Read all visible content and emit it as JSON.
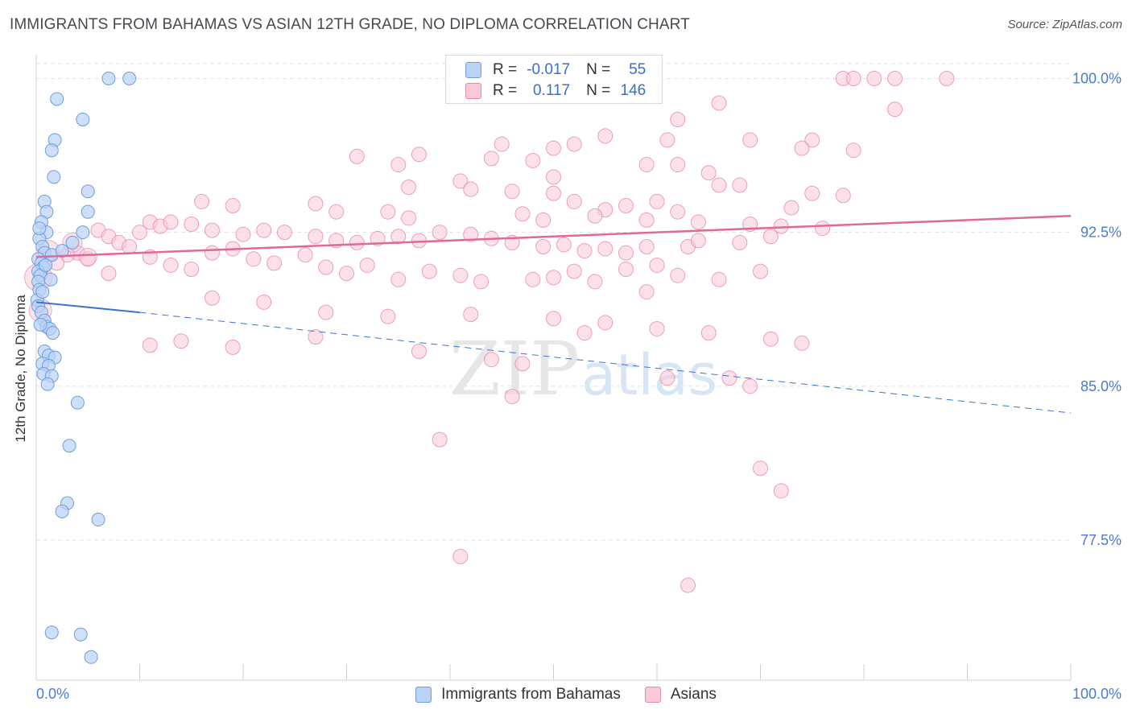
{
  "title": "IMMIGRANTS FROM BAHAMAS VS ASIAN 12TH GRADE, NO DIPLOMA CORRELATION CHART",
  "source": "Source: ZipAtlas.com",
  "watermark": {
    "zip": "ZIP",
    "atlas": "atlas"
  },
  "legend": {
    "row1": {
      "r_label": "R =",
      "r_value": "-0.017",
      "n_label": "N =",
      "n_value": "55"
    },
    "row2": {
      "r_label": "R =",
      "r_value": "0.117",
      "n_label": "N =",
      "n_value": "146"
    }
  },
  "colors": {
    "blue_fill": "#b9d3f5",
    "blue_stroke": "#6d9de0",
    "blue_line": "#3b73d1",
    "pink_fill": "#f9c9d8",
    "pink_stroke": "#e98aa8",
    "pink_line": "#e0699a",
    "grid": "#e3e3e3",
    "tick_text": "#4a7bd0"
  },
  "chart_data": {
    "type": "scatter",
    "title": "IMMIGRANTS FROM BAHAMAS VS ASIAN 12TH GRADE, NO DIPLOMA CORRELATION CHART",
    "xlabel": "",
    "ylabel": "12th Grade, No Diploma",
    "xlim": [
      0,
      100
    ],
    "ylim": [
      70.5,
      101.5
    ],
    "x_tick_labels": [
      "0.0%",
      "100.0%"
    ],
    "y_ticks": [
      77.5,
      85.0,
      92.5,
      100.0
    ],
    "y_tick_labels": [
      "77.5%",
      "85.0%",
      "92.5%",
      "100.0%"
    ],
    "grid": true,
    "legend_position": "top-center",
    "series": [
      {
        "name": "Immigrants from Bahamas",
        "r": -0.017,
        "n": 55,
        "trend": {
          "x": [
            0,
            10,
            100
          ],
          "y": [
            89.1,
            88.6,
            83.7
          ]
        },
        "points": [
          [
            7,
            100
          ],
          [
            9,
            100
          ],
          [
            2,
            99
          ],
          [
            4.5,
            98
          ],
          [
            1.8,
            97
          ],
          [
            1.5,
            96.5
          ],
          [
            1.7,
            95.2
          ],
          [
            5,
            94.5
          ],
          [
            0.8,
            94
          ],
          [
            1,
            93.5
          ],
          [
            5,
            93.5
          ],
          [
            0.5,
            93
          ],
          [
            1,
            92.5
          ],
          [
            4.5,
            92.5
          ],
          [
            0.3,
            92.2
          ],
          [
            3.5,
            92
          ],
          [
            0.6,
            91.8
          ],
          [
            0.8,
            91.5
          ],
          [
            1.5,
            91.4
          ],
          [
            0.2,
            91.2
          ],
          [
            0.5,
            91
          ],
          [
            0.7,
            90.8
          ],
          [
            0.2,
            90.6
          ],
          [
            0.4,
            90.4
          ],
          [
            0.2,
            90.1
          ],
          [
            0.3,
            89.7
          ],
          [
            0.1,
            89.2
          ],
          [
            0.2,
            88.9
          ],
          [
            0.5,
            88.6
          ],
          [
            0.8,
            88.2
          ],
          [
            1,
            87.9
          ],
          [
            1.3,
            87.8
          ],
          [
            1.6,
            87.6
          ],
          [
            0.8,
            86.7
          ],
          [
            1.2,
            86.5
          ],
          [
            1.8,
            86.4
          ],
          [
            0.6,
            86.1
          ],
          [
            1.2,
            86
          ],
          [
            0.7,
            85.6
          ],
          [
            1.5,
            85.5
          ],
          [
            1.1,
            85.1
          ],
          [
            4,
            84.2
          ],
          [
            3.2,
            82.1
          ],
          [
            3,
            79.3
          ],
          [
            2.5,
            78.9
          ],
          [
            6,
            78.5
          ],
          [
            1.5,
            73
          ],
          [
            4.3,
            72.9
          ],
          [
            5.3,
            71.8
          ],
          [
            0.3,
            92.7
          ],
          [
            2.5,
            91.6
          ],
          [
            0.9,
            90.9
          ],
          [
            1.4,
            90.2
          ],
          [
            0.6,
            89.6
          ],
          [
            0.4,
            88
          ]
        ]
      },
      {
        "name": "Asians",
        "r": 0.117,
        "n": 146,
        "trend": {
          "x": [
            0,
            100
          ],
          "y": [
            91.3,
            93.3
          ]
        },
        "points": [
          [
            78,
            100
          ],
          [
            79,
            100
          ],
          [
            81,
            100
          ],
          [
            83,
            100
          ],
          [
            88,
            100
          ],
          [
            66,
            98.8
          ],
          [
            83,
            98.5
          ],
          [
            62,
            98
          ],
          [
            55,
            97.2
          ],
          [
            61,
            97
          ],
          [
            69,
            97
          ],
          [
            75,
            97
          ],
          [
            45,
            96.8
          ],
          [
            50,
            96.6
          ],
          [
            52,
            96.8
          ],
          [
            74,
            96.6
          ],
          [
            79,
            96.5
          ],
          [
            31,
            96.2
          ],
          [
            37,
            96.3
          ],
          [
            44,
            96.1
          ],
          [
            48,
            96
          ],
          [
            35,
            95.8
          ],
          [
            59,
            95.8
          ],
          [
            62,
            95.8
          ],
          [
            65,
            95.4
          ],
          [
            50,
            95.2
          ],
          [
            41,
            95
          ],
          [
            66,
            94.8
          ],
          [
            68,
            94.8
          ],
          [
            36,
            94.7
          ],
          [
            42,
            94.6
          ],
          [
            46,
            94.5
          ],
          [
            50,
            94.4
          ],
          [
            60,
            94
          ],
          [
            73,
            93.7
          ],
          [
            75,
            94.4
          ],
          [
            78,
            94.3
          ],
          [
            52,
            94
          ],
          [
            55,
            93.6
          ],
          [
            57,
            93.8
          ],
          [
            62,
            93.5
          ],
          [
            16,
            94
          ],
          [
            19,
            93.8
          ],
          [
            27,
            93.9
          ],
          [
            29,
            93.5
          ],
          [
            34,
            93.5
          ],
          [
            36,
            93.2
          ],
          [
            47,
            93.4
          ],
          [
            49,
            93.1
          ],
          [
            54,
            93.3
          ],
          [
            59,
            93.1
          ],
          [
            64,
            93
          ],
          [
            69,
            92.9
          ],
          [
            72,
            92.8
          ],
          [
            76,
            92.7
          ],
          [
            11,
            93
          ],
          [
            12,
            92.8
          ],
          [
            13,
            93
          ],
          [
            15,
            92.9
          ],
          [
            17,
            92.6
          ],
          [
            20,
            92.4
          ],
          [
            22,
            92.6
          ],
          [
            24,
            92.5
          ],
          [
            27,
            92.3
          ],
          [
            29,
            92.1
          ],
          [
            31,
            92
          ],
          [
            33,
            92.2
          ],
          [
            35,
            92.3
          ],
          [
            37,
            92.1
          ],
          [
            39,
            92.5
          ],
          [
            42,
            92.4
          ],
          [
            44,
            92.2
          ],
          [
            46,
            92
          ],
          [
            49,
            91.8
          ],
          [
            51,
            91.9
          ],
          [
            53,
            91.6
          ],
          [
            55,
            91.7
          ],
          [
            57,
            91.5
          ],
          [
            59,
            91.8
          ],
          [
            63,
            91.8
          ],
          [
            64,
            92.1
          ],
          [
            68,
            92
          ],
          [
            71,
            92.3
          ],
          [
            6,
            92.6
          ],
          [
            7,
            92.3
          ],
          [
            8,
            92
          ],
          [
            9,
            91.8
          ],
          [
            10,
            92.5
          ],
          [
            4,
            91.5
          ],
          [
            5,
            91.2
          ],
          [
            3,
            91.4
          ],
          [
            2,
            91
          ],
          [
            11,
            91.3
          ],
          [
            13,
            90.9
          ],
          [
            15,
            90.7
          ],
          [
            17,
            91.5
          ],
          [
            19,
            91.7
          ],
          [
            21,
            91.2
          ],
          [
            23,
            91
          ],
          [
            26,
            91.4
          ],
          [
            28,
            90.8
          ],
          [
            30,
            90.5
          ],
          [
            32,
            90.9
          ],
          [
            35,
            90.2
          ],
          [
            38,
            90.6
          ],
          [
            41,
            90.4
          ],
          [
            43,
            90.1
          ],
          [
            48,
            90.2
          ],
          [
            50,
            90.3
          ],
          [
            52,
            90.6
          ],
          [
            54,
            90.1
          ],
          [
            57,
            90.7
          ],
          [
            60,
            90.9
          ],
          [
            62,
            90.4
          ],
          [
            66,
            90.2
          ],
          [
            70,
            90.6
          ],
          [
            7,
            90.5
          ],
          [
            17,
            89.3
          ],
          [
            22,
            89.1
          ],
          [
            28,
            88.6
          ],
          [
            34,
            88.4
          ],
          [
            42,
            88.5
          ],
          [
            50,
            88.3
          ],
          [
            55,
            88.1
          ],
          [
            60,
            87.8
          ],
          [
            65,
            87.6
          ],
          [
            71,
            87.3
          ],
          [
            74,
            87.1
          ],
          [
            11,
            87
          ],
          [
            14,
            87.2
          ],
          [
            19,
            86.9
          ],
          [
            27,
            87.4
          ],
          [
            37,
            86.7
          ],
          [
            44,
            86.3
          ],
          [
            46,
            84.5
          ],
          [
            61,
            85.4
          ],
          [
            69,
            85
          ],
          [
            70,
            81
          ],
          [
            72,
            79.9
          ],
          [
            41,
            76.7
          ],
          [
            63,
            75.3
          ],
          [
            53,
            87.6
          ],
          [
            47,
            86.1
          ],
          [
            67,
            85.4
          ],
          [
            59,
            89.6
          ],
          [
            39,
            82.4
          ]
        ]
      }
    ]
  },
  "bottom_legend": {
    "item1": "Immigrants from Bahamas",
    "item2": "Asians"
  }
}
